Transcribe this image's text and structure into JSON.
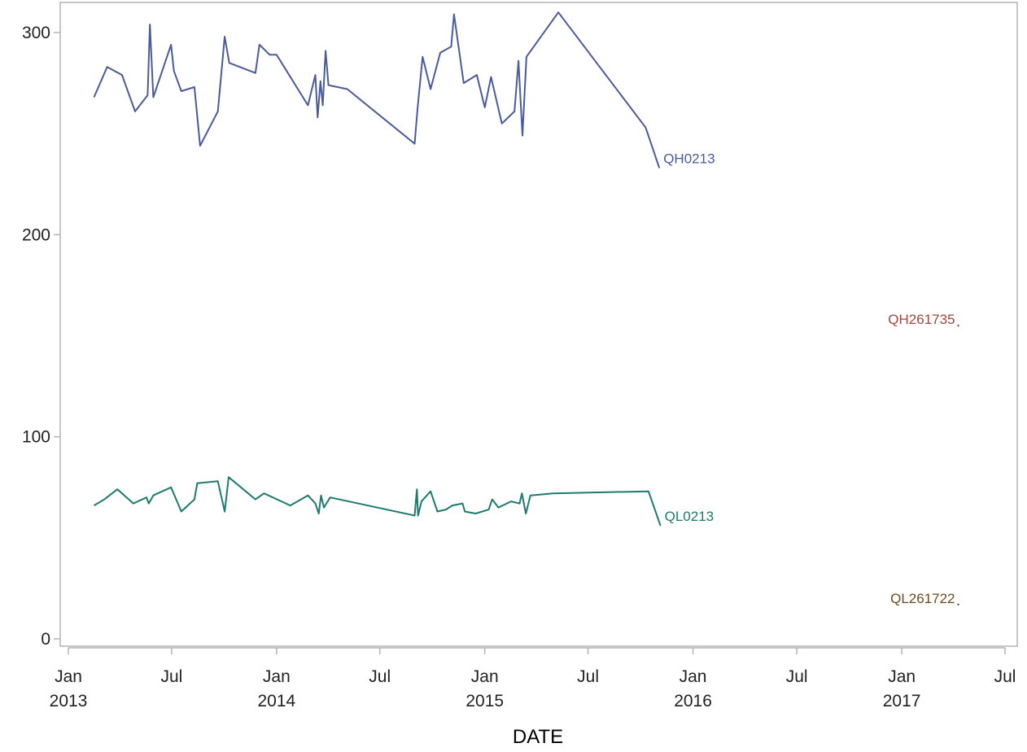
{
  "chart_data": {
    "type": "line",
    "title": "",
    "xlabel": "DATE",
    "ylabel": "",
    "ylim": [
      0,
      300
    ],
    "yticks": [
      0,
      100,
      200,
      300
    ],
    "ytick_labels": [
      "0",
      "100",
      "200",
      "300"
    ],
    "xlim": [
      "2013-01-01",
      "2017-07-01"
    ],
    "xticks": [
      {
        "date": "2013-01-01",
        "label": "Jan",
        "year": "2013"
      },
      {
        "date": "2013-07-01",
        "label": "Jul",
        "year": ""
      },
      {
        "date": "2014-01-01",
        "label": "Jan",
        "year": "2014"
      },
      {
        "date": "2014-07-01",
        "label": "Jul",
        "year": ""
      },
      {
        "date": "2015-01-01",
        "label": "Jan",
        "year": "2015"
      },
      {
        "date": "2015-07-01",
        "label": "Jul",
        "year": ""
      },
      {
        "date": "2016-01-01",
        "label": "Jan",
        "year": "2016"
      },
      {
        "date": "2016-07-01",
        "label": "Jul",
        "year": ""
      },
      {
        "date": "2017-01-01",
        "label": "Jan",
        "year": "2017"
      },
      {
        "date": "2017-07-01",
        "label": "Jul",
        "year": ""
      }
    ],
    "grid": false,
    "legend": "inline labels at series ends",
    "series": [
      {
        "name": "QH0213",
        "color": "#4a5a9c",
        "points": [
          [
            "2013-02-15",
            268
          ],
          [
            "2013-03-10",
            283
          ],
          [
            "2013-04-05",
            279
          ],
          [
            "2013-04-28",
            261
          ],
          [
            "2013-05-20",
            269
          ],
          [
            "2013-05-24",
            304
          ],
          [
            "2013-05-30",
            268
          ],
          [
            "2013-06-30",
            294
          ],
          [
            "2013-07-05",
            281
          ],
          [
            "2013-07-18",
            271
          ],
          [
            "2013-08-10",
            273
          ],
          [
            "2013-08-20",
            244
          ],
          [
            "2013-09-20",
            261
          ],
          [
            "2013-10-02",
            298
          ],
          [
            "2013-10-10",
            285
          ],
          [
            "2013-11-25",
            280
          ],
          [
            "2013-12-02",
            294
          ],
          [
            "2013-12-20",
            289
          ],
          [
            "2014-01-01",
            289
          ],
          [
            "2014-02-25",
            264
          ],
          [
            "2014-03-10",
            279
          ],
          [
            "2014-03-14",
            258
          ],
          [
            "2014-03-19",
            276
          ],
          [
            "2014-03-23",
            264
          ],
          [
            "2014-03-28",
            291
          ],
          [
            "2014-04-02",
            274
          ],
          [
            "2014-05-05",
            272
          ],
          [
            "2014-08-31",
            245
          ],
          [
            "2014-09-05",
            262
          ],
          [
            "2014-09-14",
            288
          ],
          [
            "2014-09-28",
            272
          ],
          [
            "2014-10-15",
            290
          ],
          [
            "2014-11-03",
            293
          ],
          [
            "2014-11-08",
            309
          ],
          [
            "2014-11-25",
            275
          ],
          [
            "2014-12-18",
            279
          ],
          [
            "2015-01-01",
            263
          ],
          [
            "2015-01-12",
            278
          ],
          [
            "2015-01-31",
            255
          ],
          [
            "2015-02-22",
            261
          ],
          [
            "2015-03-01",
            286
          ],
          [
            "2015-03-08",
            249
          ],
          [
            "2015-03-15",
            288
          ],
          [
            "2015-05-10",
            310
          ],
          [
            "2015-10-10",
            253
          ],
          [
            "2015-11-03",
            233
          ]
        ]
      },
      {
        "name": "QL0213",
        "color": "#1d7a6e",
        "points": [
          [
            "2013-02-15",
            66
          ],
          [
            "2013-03-05",
            69
          ],
          [
            "2013-03-28",
            74
          ],
          [
            "2013-04-25",
            67
          ],
          [
            "2013-05-18",
            70
          ],
          [
            "2013-05-22",
            67
          ],
          [
            "2013-05-30",
            71
          ],
          [
            "2013-06-30",
            75
          ],
          [
            "2013-07-18",
            63
          ],
          [
            "2013-08-10",
            69
          ],
          [
            "2013-08-15",
            77
          ],
          [
            "2013-09-20",
            78
          ],
          [
            "2013-10-02",
            63
          ],
          [
            "2013-10-09",
            80
          ],
          [
            "2013-11-25",
            69
          ],
          [
            "2013-12-10",
            72
          ],
          [
            "2014-01-25",
            66
          ],
          [
            "2014-02-25",
            71
          ],
          [
            "2014-03-10",
            67
          ],
          [
            "2014-03-16",
            62
          ],
          [
            "2014-03-20",
            71
          ],
          [
            "2014-03-25",
            65
          ],
          [
            "2014-04-05",
            70
          ],
          [
            "2014-08-31",
            61
          ],
          [
            "2014-09-04",
            74
          ],
          [
            "2014-09-06",
            61
          ],
          [
            "2014-09-12",
            68
          ],
          [
            "2014-09-28",
            73
          ],
          [
            "2014-10-10",
            63
          ],
          [
            "2014-10-25",
            64
          ],
          [
            "2014-11-05",
            66
          ],
          [
            "2014-11-23",
            67
          ],
          [
            "2014-11-27",
            63
          ],
          [
            "2014-12-16",
            62
          ],
          [
            "2015-01-08",
            64
          ],
          [
            "2015-01-14",
            69
          ],
          [
            "2015-01-25",
            65
          ],
          [
            "2015-02-16",
            68
          ],
          [
            "2015-03-03",
            67
          ],
          [
            "2015-03-07",
            72
          ],
          [
            "2015-03-14",
            62
          ],
          [
            "2015-03-22",
            71
          ],
          [
            "2015-05-01",
            72
          ],
          [
            "2015-10-15",
            73
          ],
          [
            "2015-11-05",
            56
          ]
        ]
      },
      {
        "name": "QH261735",
        "color": "#a0473f",
        "points": [
          [
            "2017-04-10",
            155
          ]
        ]
      },
      {
        "name": "QL261722",
        "color": "#6b4a1e",
        "points": [
          [
            "2017-04-10",
            17
          ]
        ]
      }
    ]
  }
}
